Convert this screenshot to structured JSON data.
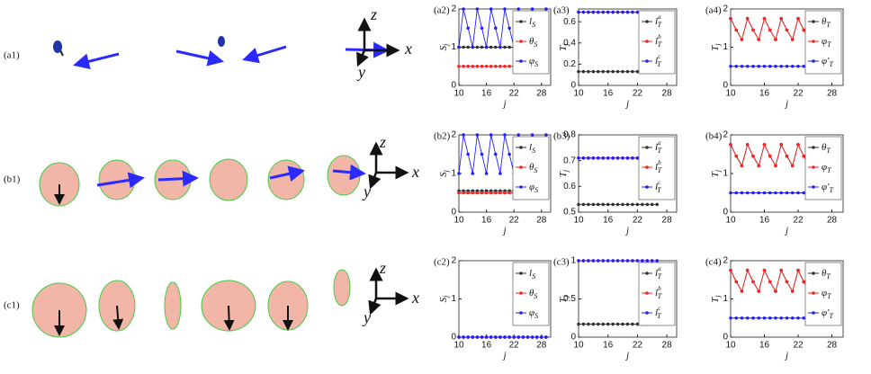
{
  "figure": {
    "panels": [
      {
        "label": "(a1)",
        "axes": {
          "z": "z",
          "x": "x",
          "y": "y"
        }
      },
      {
        "label": "(b1)",
        "axes": {
          "z": "z",
          "x": "x",
          "y": "y"
        }
      },
      {
        "label": "(c1)",
        "axes": {
          "z": "z",
          "x": "x",
          "y": "y"
        }
      }
    ]
  },
  "chart_data": [
    {
      "type": "line",
      "panel_label": "(a2)",
      "xlabel": "j",
      "ylabel": "S",
      "ylabel_sub": "j",
      "x": [
        10,
        11,
        12,
        13,
        14,
        15,
        16,
        17,
        18,
        19,
        20,
        21,
        22,
        23,
        24,
        25,
        26,
        27,
        28,
        29
      ],
      "xlim": [
        10,
        30
      ],
      "xticks": [
        10,
        16,
        22,
        28
      ],
      "ylim": [
        0,
        2
      ],
      "yticks": [
        0,
        1,
        2
      ],
      "legend": "top-right",
      "series": [
        {
          "name": "l",
          "sub": "S",
          "color": "#333333",
          "values": [
            1,
            1,
            1,
            1,
            1,
            1,
            1,
            1,
            1,
            1,
            1,
            1,
            1,
            1,
            1,
            1,
            1,
            1,
            1,
            1
          ]
        },
        {
          "name": "θ",
          "sub": "S",
          "color": "#ff2020",
          "values": [
            0.5,
            0.5,
            0.5,
            0.5,
            0.5,
            0.5,
            0.5,
            0.5,
            0.5,
            0.5,
            0.5,
            0.5,
            0.5,
            0.5,
            0.5,
            0.5,
            0.5,
            0.5,
            0.5,
            0.5
          ]
        },
        {
          "name": "φ",
          "sub": "S",
          "color": "#2020ff",
          "values": [
            1,
            2,
            1.5,
            1,
            2,
            1.5,
            1,
            2,
            1.5,
            1,
            2,
            1.5,
            1,
            2,
            1.5,
            1,
            2,
            1.5,
            1,
            2
          ]
        }
      ]
    },
    {
      "type": "line",
      "panel_label": "(a3)",
      "xlabel": "j",
      "ylabel": "T",
      "ylabel_sub": "j",
      "x": [
        10,
        11,
        12,
        13,
        14,
        15,
        16,
        17,
        18,
        19,
        20,
        21,
        22,
        23,
        24,
        25,
        26
      ],
      "xlim": [
        10,
        30
      ],
      "xticks": [
        10,
        16,
        22,
        28
      ],
      "ylim": [
        0,
        0.72
      ],
      "yticks": [
        0,
        0.2,
        0.4,
        0.6
      ],
      "legend": "top-right",
      "series": [
        {
          "name": "l",
          "sub": "T",
          "sup": "a",
          "color": "#333333",
          "values": [
            0.13,
            0.13,
            0.13,
            0.13,
            0.13,
            0.13,
            0.13,
            0.13,
            0.13,
            0.13,
            0.13,
            0.13,
            0.13,
            0.13,
            0.13,
            0.13,
            0.13
          ]
        },
        {
          "name": "l",
          "sub": "T",
          "sup": "b",
          "color": "#ff2020",
          "values": [
            0.69,
            0.69,
            0.69,
            0.69,
            0.69,
            0.69,
            0.69,
            0.69,
            0.69,
            0.69,
            0.69,
            0.69,
            0.69,
            0.69,
            0.69,
            0.69,
            0.69
          ]
        },
        {
          "name": "l",
          "sub": "T",
          "sup": "c",
          "color": "#2020ff",
          "values": [
            0.69,
            0.69,
            0.69,
            0.69,
            0.69,
            0.69,
            0.69,
            0.69,
            0.69,
            0.69,
            0.69,
            0.69,
            0.69,
            0.69,
            0.69,
            0.69,
            0.69
          ]
        }
      ]
    },
    {
      "type": "line",
      "panel_label": "(a4)",
      "xlabel": "j",
      "ylabel": "T",
      "ylabel_sub": "j",
      "x": [
        10,
        11,
        12,
        13,
        14,
        15,
        16,
        17,
        18,
        19,
        20,
        21,
        22,
        23,
        24,
        25
      ],
      "xlim": [
        10,
        30
      ],
      "xticks": [
        10,
        16,
        22,
        28
      ],
      "ylim": [
        0,
        2
      ],
      "yticks": [
        0,
        1,
        2
      ],
      "legend": "top-right",
      "series": [
        {
          "name": "θ",
          "sub": "T",
          "color": "#333333",
          "values": [
            1.75,
            1.45,
            1.2,
            1.75,
            1.45,
            1.2,
            1.75,
            1.45,
            1.2,
            1.75,
            1.45,
            1.2,
            1.75,
            1.45,
            1.2,
            1.75
          ]
        },
        {
          "name": "φ",
          "sub": "T",
          "color": "#ff2020",
          "values": [
            1.75,
            1.45,
            1.2,
            1.75,
            1.45,
            1.2,
            1.75,
            1.45,
            1.2,
            1.75,
            1.45,
            1.2,
            1.75,
            1.45,
            1.2,
            1.75
          ]
        },
        {
          "name": "φ'",
          "sub": "T",
          "color": "#2020ff",
          "values": [
            0.5,
            0.5,
            0.5,
            0.5,
            0.5,
            0.5,
            0.5,
            0.5,
            0.5,
            0.5,
            0.5,
            0.5,
            0.5,
            0.5,
            0.5,
            0.5
          ]
        }
      ]
    },
    {
      "type": "line",
      "panel_label": "(b2)",
      "xlabel": "j",
      "ylabel": "S",
      "ylabel_sub": "j",
      "x": [
        10,
        11,
        12,
        13,
        14,
        15,
        16,
        17,
        18,
        19,
        20,
        21,
        22,
        23,
        24,
        25,
        26,
        27,
        28,
        29
      ],
      "xlim": [
        10,
        30
      ],
      "xticks": [
        10,
        16,
        22,
        28
      ],
      "ylim": [
        0,
        2
      ],
      "yticks": [
        0,
        1,
        2
      ],
      "legend": "top-right",
      "series": [
        {
          "name": "l",
          "sub": "S",
          "color": "#333333",
          "values": [
            0.55,
            0.55,
            0.55,
            0.55,
            0.55,
            0.55,
            0.55,
            0.55,
            0.55,
            0.55,
            0.55,
            0.55,
            0.55,
            0.55,
            0.55,
            0.55,
            0.55,
            0.55,
            0.55,
            0.55
          ]
        },
        {
          "name": "θ",
          "sub": "S",
          "color": "#ff2020",
          "values": [
            0.5,
            0.5,
            0.5,
            0.5,
            0.5,
            0.5,
            0.5,
            0.5,
            0.5,
            0.5,
            0.5,
            0.5,
            0.5,
            0.5,
            0.5,
            0.5,
            0.5,
            0.5,
            0.5,
            0.5
          ]
        },
        {
          "name": "φ",
          "sub": "S",
          "color": "#2020ff",
          "values": [
            1,
            2,
            1.5,
            1,
            2,
            1.5,
            1,
            2,
            1.5,
            1,
            2,
            1.5,
            1,
            2,
            1.5,
            1,
            2,
            1.5,
            1,
            2
          ]
        }
      ]
    },
    {
      "type": "line",
      "panel_label": "(b3)",
      "xlabel": "j",
      "ylabel": "T",
      "ylabel_sub": "j",
      "x": [
        10,
        11,
        12,
        13,
        14,
        15,
        16,
        17,
        18,
        19,
        20,
        21,
        22,
        23,
        24,
        25,
        26
      ],
      "xlim": [
        10,
        30
      ],
      "xticks": [
        10,
        16,
        22,
        28
      ],
      "ylim": [
        0.5,
        0.8
      ],
      "yticks": [
        0.5,
        0.6,
        0.7,
        0.8
      ],
      "legend": "top-right",
      "series": [
        {
          "name": "l",
          "sub": "T",
          "sup": "a",
          "color": "#333333",
          "values": [
            0.53,
            0.53,
            0.53,
            0.53,
            0.53,
            0.53,
            0.53,
            0.53,
            0.53,
            0.53,
            0.53,
            0.53,
            0.53,
            0.53,
            0.53,
            0.53,
            0.53
          ]
        },
        {
          "name": "l",
          "sub": "T",
          "sup": "b",
          "color": "#ff2020",
          "values": [
            0.71,
            0.71,
            0.71,
            0.71,
            0.71,
            0.71,
            0.71,
            0.71,
            0.71,
            0.71,
            0.71,
            0.71,
            0.71,
            0.71,
            0.71,
            0.71,
            0.71
          ]
        },
        {
          "name": "l",
          "sub": "T",
          "sup": "c",
          "color": "#2020ff",
          "values": [
            0.71,
            0.71,
            0.71,
            0.71,
            0.71,
            0.71,
            0.71,
            0.71,
            0.71,
            0.71,
            0.71,
            0.71,
            0.71,
            0.71,
            0.71,
            0.71,
            0.71
          ]
        }
      ]
    },
    {
      "type": "line",
      "panel_label": "(b4)",
      "xlabel": "j",
      "ylabel": "T",
      "ylabel_sub": "j",
      "x": [
        10,
        11,
        12,
        13,
        14,
        15,
        16,
        17,
        18,
        19,
        20,
        21,
        22,
        23,
        24,
        25
      ],
      "xlim": [
        10,
        30
      ],
      "xticks": [
        10,
        16,
        22,
        28
      ],
      "ylim": [
        0,
        2
      ],
      "yticks": [
        0,
        1,
        2
      ],
      "legend": "top-right",
      "series": [
        {
          "name": "θ",
          "sub": "T",
          "color": "#333333",
          "values": [
            1.75,
            1.45,
            1.2,
            1.75,
            1.45,
            1.2,
            1.75,
            1.45,
            1.2,
            1.75,
            1.45,
            1.2,
            1.75,
            1.45,
            1.2,
            1.75
          ]
        },
        {
          "name": "φ",
          "sub": "T",
          "color": "#ff2020",
          "values": [
            1.75,
            1.45,
            1.2,
            1.75,
            1.45,
            1.2,
            1.75,
            1.45,
            1.2,
            1.75,
            1.45,
            1.2,
            1.75,
            1.45,
            1.2,
            1.75
          ]
        },
        {
          "name": "φ'",
          "sub": "T",
          "color": "#2020ff",
          "values": [
            0.5,
            0.5,
            0.5,
            0.5,
            0.5,
            0.5,
            0.5,
            0.5,
            0.5,
            0.5,
            0.5,
            0.5,
            0.5,
            0.5,
            0.5,
            0.5
          ]
        }
      ]
    },
    {
      "type": "line",
      "panel_label": "(c2)",
      "xlabel": "j",
      "ylabel": "S",
      "ylabel_sub": "j",
      "x": [
        10,
        11,
        12,
        13,
        14,
        15,
        16,
        17,
        18,
        19,
        20,
        21,
        22,
        23,
        24,
        25,
        26,
        27,
        28,
        29
      ],
      "xlim": [
        10,
        30
      ],
      "xticks": [
        10,
        16,
        22,
        28
      ],
      "ylim": [
        0,
        2
      ],
      "yticks": [
        0,
        1,
        2
      ],
      "legend": "top-right",
      "series": [
        {
          "name": "l",
          "sub": "S",
          "color": "#333333",
          "values": [
            0,
            0,
            0,
            0,
            0,
            0,
            0,
            0,
            0,
            0,
            0,
            0,
            0,
            0,
            0,
            0,
            0,
            0,
            0,
            0
          ]
        },
        {
          "name": "θ",
          "sub": "S",
          "color": "#ff2020",
          "values": [
            0,
            0,
            0,
            0,
            0,
            0,
            0,
            0,
            0,
            0,
            0,
            0,
            0,
            0,
            0,
            0,
            0,
            0,
            0,
            0
          ]
        },
        {
          "name": "φ",
          "sub": "S",
          "color": "#2020ff",
          "values": [
            0,
            0,
            0,
            0,
            0,
            0,
            0,
            0,
            0,
            0,
            0,
            0,
            0,
            0,
            0,
            0,
            0,
            0,
            0,
            0
          ]
        }
      ]
    },
    {
      "type": "line",
      "panel_label": "(c3)",
      "xlabel": "j",
      "ylabel": "T",
      "ylabel_sub": "j",
      "x": [
        10,
        11,
        12,
        13,
        14,
        15,
        16,
        17,
        18,
        19,
        20,
        21,
        22,
        23,
        24,
        25,
        26
      ],
      "xlim": [
        10,
        30
      ],
      "xticks": [
        10,
        16,
        22,
        28
      ],
      "ylim": [
        0,
        1
      ],
      "yticks": [
        0,
        0.5,
        1
      ],
      "legend": "top-right",
      "series": [
        {
          "name": "l",
          "sub": "T",
          "sup": "a",
          "color": "#333333",
          "values": [
            0.17,
            0.17,
            0.17,
            0.17,
            0.17,
            0.17,
            0.17,
            0.17,
            0.17,
            0.17,
            0.17,
            0.17,
            0.17,
            0.17,
            0.17,
            0.17,
            0.17
          ]
        },
        {
          "name": "l",
          "sub": "T",
          "sup": "b",
          "color": "#ff2020",
          "values": [
            1,
            1,
            1,
            1,
            1,
            1,
            1,
            1,
            1,
            1,
            1,
            1,
            1,
            1,
            1,
            1,
            1
          ]
        },
        {
          "name": "l",
          "sub": "T",
          "sup": "c",
          "color": "#2020ff",
          "values": [
            1,
            1,
            1,
            1,
            1,
            1,
            1,
            1,
            1,
            1,
            1,
            1,
            1,
            1,
            1,
            1,
            1
          ]
        }
      ]
    },
    {
      "type": "line",
      "panel_label": "(c4)",
      "xlabel": "j",
      "ylabel": "T",
      "ylabel_sub": "j",
      "x": [
        10,
        11,
        12,
        13,
        14,
        15,
        16,
        17,
        18,
        19,
        20,
        21,
        22,
        23,
        24,
        25
      ],
      "xlim": [
        10,
        30
      ],
      "xticks": [
        10,
        16,
        22,
        28
      ],
      "ylim": [
        0,
        2
      ],
      "yticks": [
        0,
        1,
        2
      ],
      "legend": "top-right",
      "series": [
        {
          "name": "θ",
          "sub": "T",
          "color": "#333333",
          "values": [
            1.75,
            1.45,
            1.2,
            1.75,
            1.45,
            1.2,
            1.75,
            1.45,
            1.2,
            1.75,
            1.45,
            1.2,
            1.75,
            1.45,
            1.2,
            1.75
          ]
        },
        {
          "name": "φ",
          "sub": "T",
          "color": "#ff2020",
          "values": [
            1.75,
            1.45,
            1.2,
            1.75,
            1.45,
            1.2,
            1.75,
            1.45,
            1.2,
            1.75,
            1.45,
            1.2,
            1.75,
            1.45,
            1.2,
            1.75
          ]
        },
        {
          "name": "φ'",
          "sub": "T",
          "color": "#2020ff",
          "values": [
            0.5,
            0.5,
            0.5,
            0.5,
            0.5,
            0.5,
            0.5,
            0.5,
            0.5,
            0.5,
            0.5,
            0.5,
            0.5,
            0.5,
            0.5,
            0.5
          ]
        }
      ]
    }
  ]
}
